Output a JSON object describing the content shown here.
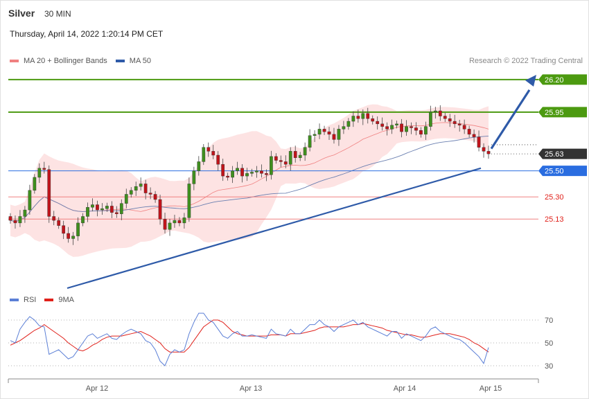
{
  "header": {
    "symbol": "Silver",
    "timeframe": "30 MIN",
    "datetime": "Thursday, April 14, 2022 1:20:14 PM CET",
    "credit": "Research © 2022 Trading Central"
  },
  "legend_main": [
    {
      "label": "MA 20 + Bollinger Bands",
      "color": "#f08080"
    },
    {
      "label": "MA 50",
      "color": "#2e5aa8"
    }
  ],
  "legend_rsi": [
    {
      "label": "RSI",
      "color": "#5b7fd6"
    },
    {
      "label": "9MA",
      "color": "#e0201a"
    }
  ],
  "chart_data": [
    {
      "type": "candlestick",
      "y_range": [
        24.7,
        26.25
      ],
      "x_labels": [
        "Apr 12",
        "Apr 13",
        "Apr 14",
        "Apr 15"
      ],
      "last_price": 25.63,
      "levels": [
        {
          "value": 26.2,
          "label": "26.20",
          "kind": "resistance",
          "color": "#4c9a10"
        },
        {
          "value": 25.95,
          "label": "25.95",
          "kind": "resistance",
          "color": "#4c9a10"
        },
        {
          "value": 25.5,
          "label": "25.50",
          "kind": "pivot",
          "color": "#2a6de0"
        },
        {
          "value": 25.3,
          "label": "25.30",
          "kind": "support",
          "color": "#f08080"
        },
        {
          "value": 25.13,
          "label": "25.13",
          "kind": "support",
          "color": "#f08080"
        }
      ],
      "close": [
        25.12,
        25.1,
        25.15,
        25.2,
        25.35,
        25.45,
        25.52,
        25.51,
        25.15,
        25.12,
        25.08,
        25.02,
        24.98,
        25.0,
        25.1,
        25.15,
        25.22,
        25.24,
        25.2,
        25.21,
        25.23,
        25.18,
        25.17,
        25.25,
        25.32,
        25.35,
        25.38,
        25.4,
        25.33,
        25.32,
        25.28,
        25.13,
        25.05,
        25.1,
        25.12,
        25.1,
        25.14,
        25.4,
        25.5,
        25.57,
        25.68,
        25.65,
        25.62,
        25.55,
        25.46,
        25.45,
        25.5,
        25.52,
        25.46,
        25.48,
        25.49,
        25.5,
        25.48,
        25.47,
        25.61,
        25.58,
        25.57,
        25.55,
        25.65,
        25.6,
        25.62,
        25.68,
        25.77,
        25.78,
        25.82,
        25.8,
        25.78,
        25.74,
        25.82,
        25.84,
        25.88,
        25.92,
        25.9,
        25.94,
        25.9,
        25.88,
        25.86,
        25.84,
        25.82,
        25.85,
        25.86,
        25.8,
        25.84,
        25.83,
        25.81,
        25.78,
        25.84,
        25.95,
        25.96,
        25.92,
        25.9,
        25.88,
        25.86,
        25.85,
        25.82,
        25.78,
        25.76,
        25.68,
        25.65,
        25.63
      ]
    },
    {
      "type": "line",
      "title": "RSI",
      "y_ticks": [
        70,
        50,
        30
      ],
      "y_range": [
        20,
        80
      ],
      "rsi": [
        52,
        50,
        62,
        68,
        73,
        70,
        65,
        64,
        40,
        42,
        44,
        40,
        36,
        38,
        44,
        50,
        56,
        58,
        54,
        56,
        58,
        54,
        53,
        57,
        60,
        62,
        60,
        58,
        52,
        50,
        44,
        34,
        30,
        40,
        44,
        42,
        44,
        58,
        68,
        76,
        76,
        70,
        68,
        62,
        56,
        54,
        58,
        60,
        56,
        56,
        57,
        56,
        55,
        54,
        62,
        58,
        57,
        56,
        62,
        58,
        58,
        62,
        66,
        66,
        70,
        66,
        64,
        60,
        64,
        66,
        68,
        70,
        66,
        68,
        64,
        62,
        60,
        58,
        56,
        60,
        60,
        54,
        58,
        56,
        54,
        52,
        56,
        62,
        64,
        60,
        58,
        56,
        54,
        53,
        50,
        46,
        42,
        38,
        32,
        46
      ],
      "ma9": [
        48,
        50,
        52,
        55,
        58,
        61,
        63,
        66,
        63,
        60,
        57,
        54,
        50,
        47,
        44,
        43,
        45,
        48,
        50,
        53,
        55,
        56,
        56,
        56,
        57,
        58,
        59,
        60,
        58,
        56,
        53,
        50,
        45,
        42,
        42,
        42,
        42,
        46,
        52,
        58,
        64,
        67,
        70,
        70,
        68,
        64,
        60,
        58,
        57,
        56,
        56,
        56,
        56,
        56,
        57,
        57,
        57,
        56,
        58,
        58,
        58,
        59,
        60,
        61,
        63,
        64,
        64,
        64,
        64,
        64,
        65,
        66,
        66,
        67,
        66,
        65,
        64,
        63,
        61,
        60,
        59,
        58,
        57,
        57,
        56,
        55,
        55,
        56,
        57,
        58,
        58,
        58,
        57,
        56,
        55,
        53,
        50,
        48,
        45,
        42
      ]
    }
  ]
}
